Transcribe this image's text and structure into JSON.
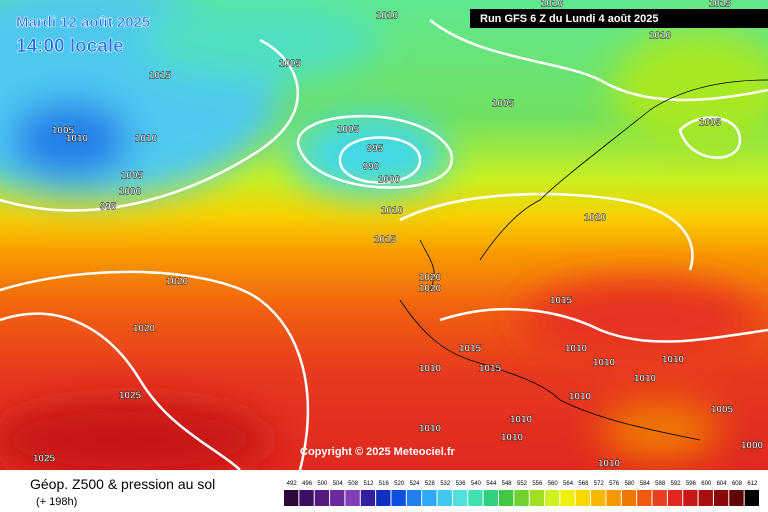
{
  "header": {
    "date": "Mardi 12 août 2025",
    "time": "14:00 locale",
    "run": "Run GFS 6 Z du Lundi 4 août 2025"
  },
  "copyright": "Copyright © 2025 Meteociel.fr",
  "footer": {
    "title": "Géop. Z500 & pression au sol",
    "lead": "(+ 198h)"
  },
  "scale_labels": [
    492,
    496,
    500,
    504,
    508,
    512,
    516,
    520,
    524,
    528,
    532,
    536,
    540,
    544,
    548,
    552,
    556,
    560,
    564,
    568,
    572,
    576,
    580,
    584,
    588,
    592,
    596,
    600,
    604,
    608,
    612
  ],
  "isobar_labels": [
    1010,
    1015,
    1010,
    1010,
    1015,
    1005,
    1005,
    1005,
    1005,
    1010,
    1005,
    995,
    990,
    1000,
    1010,
    1005,
    1000,
    995,
    1010,
    1020,
    1015,
    1020,
    1020,
    1020,
    1015,
    1020,
    1015,
    1010,
    1010,
    1010,
    1010,
    1015,
    1010,
    1025,
    1010,
    1005,
    1010,
    1010,
    1010,
    1000,
    1010,
    1025
  ]
}
